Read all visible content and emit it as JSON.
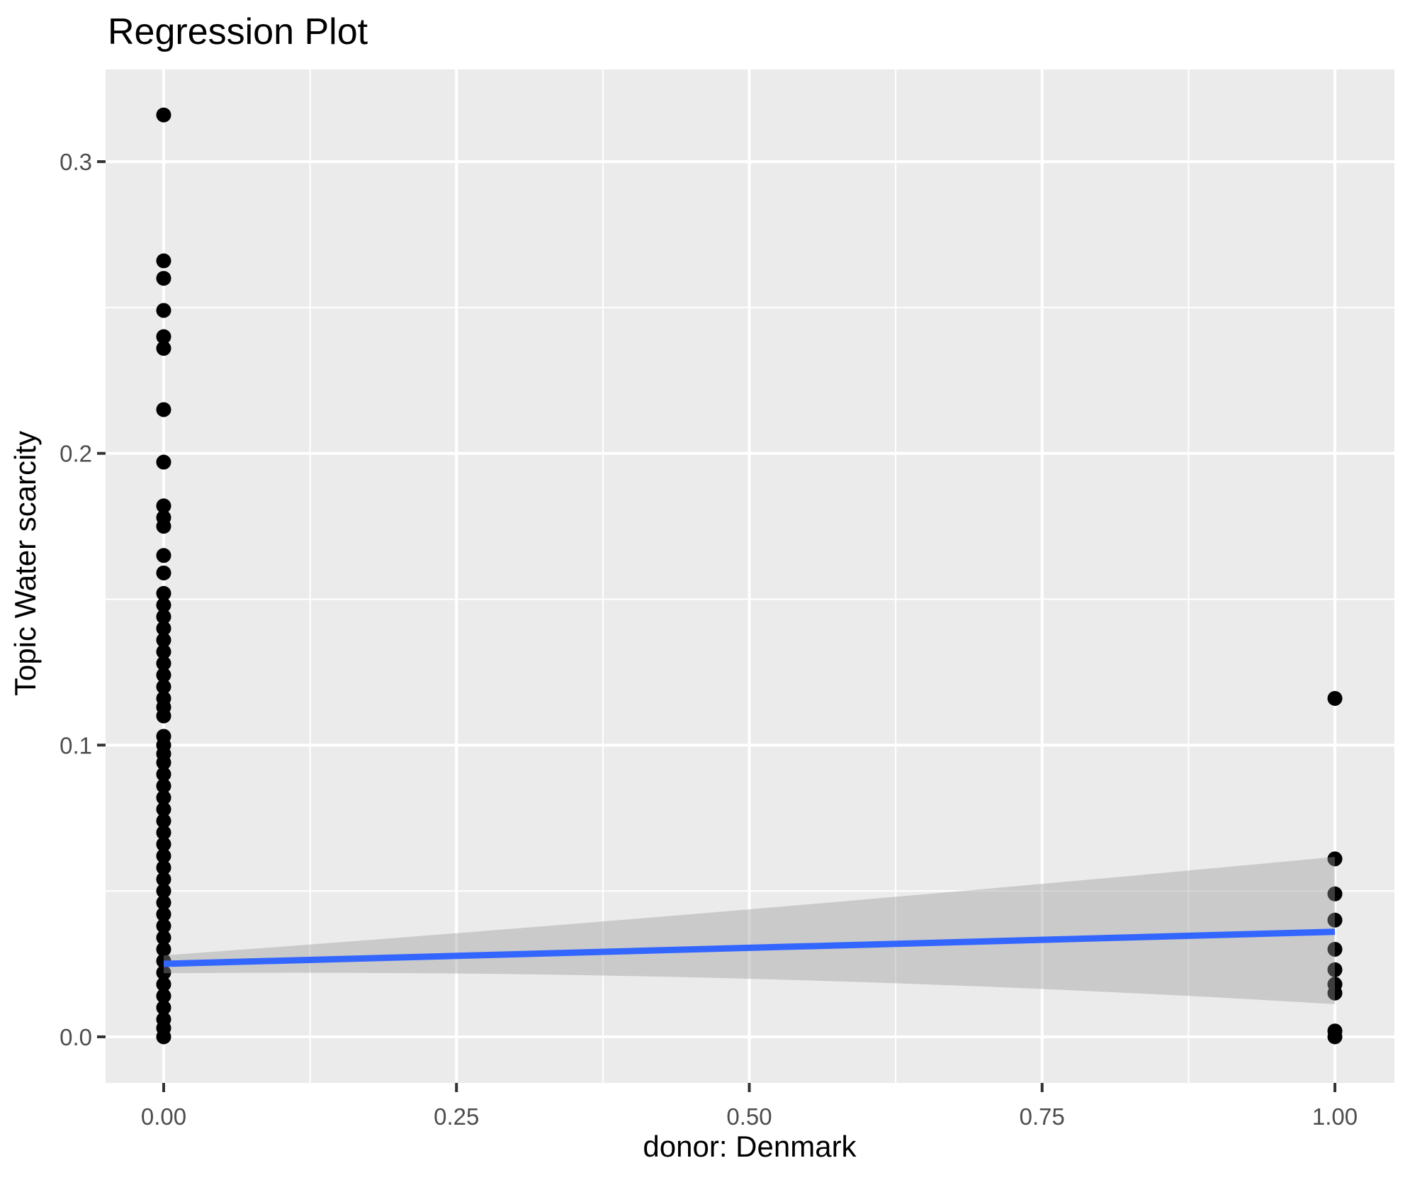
{
  "page": {
    "title": "Regression Plot"
  },
  "chart_data": {
    "type": "scatter",
    "title": "Regression Plot",
    "xlabel": "donor: Denmark",
    "ylabel": "Topic Water scarcity",
    "xlim": [
      -0.0496,
      1.0508
    ],
    "ylim": [
      -0.0158,
      0.3316
    ],
    "grid": true,
    "legend": false,
    "x_ticks": {
      "values": [
        0,
        0.25,
        0.5,
        0.75,
        1
      ],
      "labels": [
        "0.00",
        "0.25",
        "0.50",
        "0.75",
        "1.00"
      ]
    },
    "y_ticks": {
      "values": [
        0,
        0.1,
        0.2,
        0.3
      ],
      "labels": [
        "0.0",
        "0.1",
        "0.2",
        "0.3"
      ]
    },
    "x_minor": [
      0.125,
      0.375,
      0.625,
      0.875
    ],
    "y_minor": [
      0.05,
      0.15,
      0.25
    ],
    "series": [
      {
        "name": "donor = 0",
        "x": 0,
        "y": [
          0.316,
          0.266,
          0.26,
          0.249,
          0.24,
          0.236,
          0.215,
          0.197,
          0.182,
          0.178,
          0.175,
          0.165,
          0.159,
          0.152,
          0.148,
          0.144,
          0.14,
          0.136,
          0.132,
          0.128,
          0.124,
          0.12,
          0.116,
          0.113,
          0.11,
          0.103,
          0.1,
          0.097,
          0.094,
          0.09,
          0.086,
          0.082,
          0.078,
          0.074,
          0.07,
          0.066,
          0.062,
          0.058,
          0.054,
          0.05,
          0.046,
          0.042,
          0.038,
          0.034,
          0.03,
          0.026,
          0.022,
          0.018,
          0.014,
          0.01,
          0.006,
          0.003,
          0.0
        ]
      },
      {
        "name": "donor = 1",
        "x": 1,
        "y": [
          0.116,
          0.061,
          0.049,
          0.04,
          0.03,
          0.023,
          0.018,
          0.015,
          0.002,
          0.0
        ]
      }
    ],
    "regression_line": {
      "x": [
        0,
        1
      ],
      "y": [
        0.025,
        0.036
      ]
    },
    "confidence_band": {
      "x": [
        0,
        0.5,
        1
      ],
      "upper": [
        0.0279,
        0.0437,
        0.0617
      ],
      "lower": [
        0.0218,
        0.0199,
        0.0112
      ]
    },
    "point_radius_px": 10.5,
    "colors": {
      "point": "#000000",
      "line": "#3366FF",
      "band": "rgba(153,153,153,0.40)",
      "panel_bg": "#EBEBEB",
      "grid": "#FFFFFF",
      "tick_label": "#4D4D4D",
      "tick_mark": "#333333",
      "text": "#000000",
      "figure_bg": "#FFFFFF"
    }
  }
}
